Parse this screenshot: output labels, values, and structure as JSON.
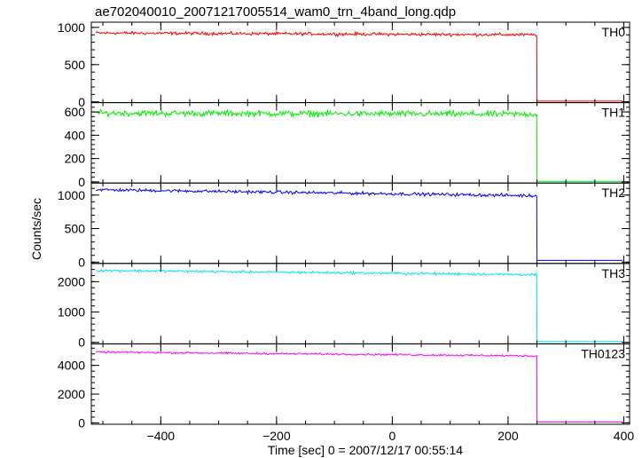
{
  "chart_data": {
    "type": "line",
    "title": "ae702040010_20071217005514_wam0_trn_4band_long.qdp",
    "xlabel": "Time [sec] 0 = 2007/12/17 00:55:14",
    "ylabel": "Counts/sec",
    "xlim": [
      -520,
      410
    ],
    "x_ticks": [
      -400,
      -200,
      0,
      200,
      400
    ],
    "step_time": 250,
    "grid": false,
    "legend": "none",
    "panels": [
      {
        "name": "TH0",
        "color": "#ff0000",
        "ylim": [
          -10,
          1070
        ],
        "y_ticks": [
          0,
          500,
          1000
        ],
        "level_start": 925,
        "level_end": 900,
        "noise": 18,
        "level_after": 10
      },
      {
        "name": "TH1",
        "color": "#00ee00",
        "ylim": [
          -10,
          680
        ],
        "y_ticks": [
          0,
          200,
          400,
          600
        ],
        "level_start": 590,
        "level_end": 580,
        "noise": 22,
        "level_after": 5
      },
      {
        "name": "TH2",
        "color": "#0000ff",
        "ylim": [
          -20,
          1180
        ],
        "y_ticks": [
          0,
          500,
          1000
        ],
        "level_start": 1080,
        "level_end": 990,
        "noise": 20,
        "level_after": 25
      },
      {
        "name": "TH3",
        "color": "#00e5ee",
        "ylim": [
          -50,
          2600
        ],
        "y_ticks": [
          0,
          1000,
          2000
        ],
        "level_start": 2370,
        "level_end": 2230,
        "noise": 35,
        "level_after": 30
      },
      {
        "name": "TH0123",
        "color": "#ff00ff",
        "ylim": [
          -100,
          5500
        ],
        "y_ticks": [
          0,
          2000,
          4000
        ],
        "level_start": 4930,
        "level_end": 4660,
        "noise": 55,
        "level_after": 60
      }
    ]
  }
}
